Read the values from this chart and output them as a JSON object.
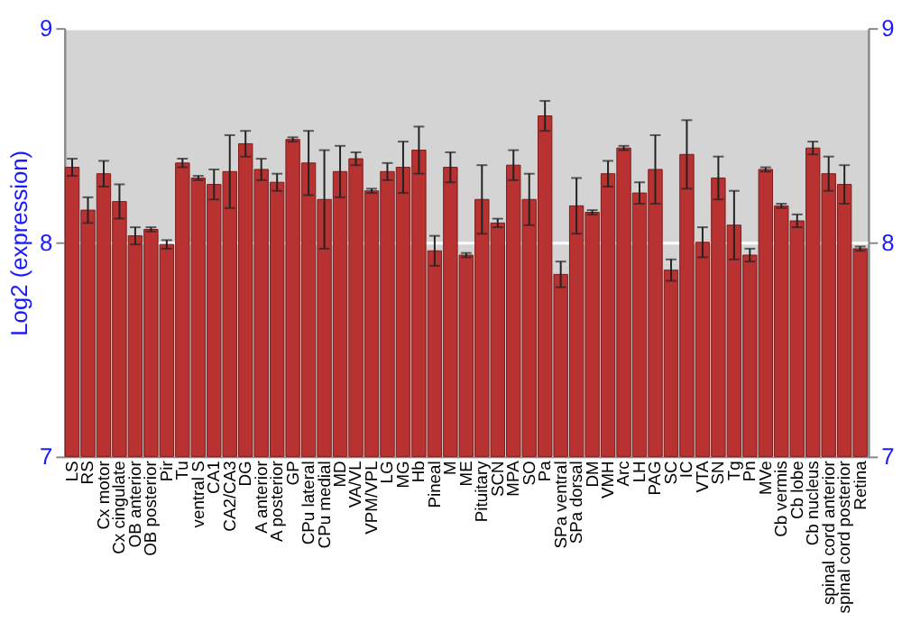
{
  "chart_data": {
    "type": "bar",
    "ylabel": "Log2 (expression)",
    "categories": [
      "LS",
      "RS",
      "Cx motor",
      "Cx cingulate",
      "OB anterior",
      "OB posterior",
      "Pir",
      "Tu",
      "ventral S",
      "CA1",
      "CA2/CA3",
      "DG",
      "A anterior",
      "A posterior",
      "GP",
      "CPu lateral",
      "CPu medial",
      "MD",
      "VA/VL",
      "VPM/VPL",
      "LG",
      "MG",
      "Hb",
      "Pineal",
      "M",
      "ME",
      "Pituitary",
      "SCN",
      "MPA",
      "SO",
      "Pa",
      "SPa ventral",
      "SPa dorsal",
      "DM",
      "VMH",
      "Arc",
      "LH",
      "PAG",
      "SC",
      "IC",
      "VTA",
      "SN",
      "Tg",
      "Pn",
      "MVe",
      "Cb vermis",
      "Cb lobe",
      "Cb nucleus",
      "spinal cord anterior",
      "spinal cord posterior",
      "Retina"
    ],
    "values": [
      8.35,
      8.15,
      8.32,
      8.19,
      8.03,
      8.06,
      7.99,
      8.37,
      8.3,
      8.27,
      8.33,
      8.46,
      8.34,
      8.28,
      8.48,
      8.37,
      8.2,
      8.33,
      8.39,
      8.24,
      8.33,
      8.35,
      8.43,
      7.96,
      8.35,
      7.94,
      8.2,
      8.09,
      8.36,
      8.2,
      8.59,
      7.85,
      8.17,
      8.14,
      8.32,
      8.44,
      8.23,
      8.34,
      7.87,
      8.41,
      8.0,
      8.3,
      8.08,
      7.94,
      8.34,
      8.17,
      8.1,
      8.44,
      8.32,
      8.27,
      7.97
    ],
    "errors": [
      0.04,
      0.06,
      0.06,
      0.08,
      0.04,
      0.01,
      0.02,
      0.02,
      0.01,
      0.07,
      0.17,
      0.06,
      0.05,
      0.04,
      0.01,
      0.15,
      0.23,
      0.12,
      0.03,
      0.01,
      0.04,
      0.12,
      0.11,
      0.07,
      0.07,
      0.01,
      0.16,
      0.02,
      0.07,
      0.12,
      0.07,
      0.06,
      0.13,
      0.01,
      0.06,
      0.01,
      0.05,
      0.16,
      0.05,
      0.16,
      0.07,
      0.1,
      0.16,
      0.03,
      0.01,
      0.01,
      0.03,
      0.03,
      0.08,
      0.09,
      0.01
    ],
    "color": "#b83232",
    "ylim": [
      7,
      9
    ],
    "yticks": [
      7,
      8,
      9
    ],
    "y2lim": [
      7,
      9
    ],
    "y2ticks": [
      7,
      8,
      9
    ],
    "grid": "y"
  }
}
